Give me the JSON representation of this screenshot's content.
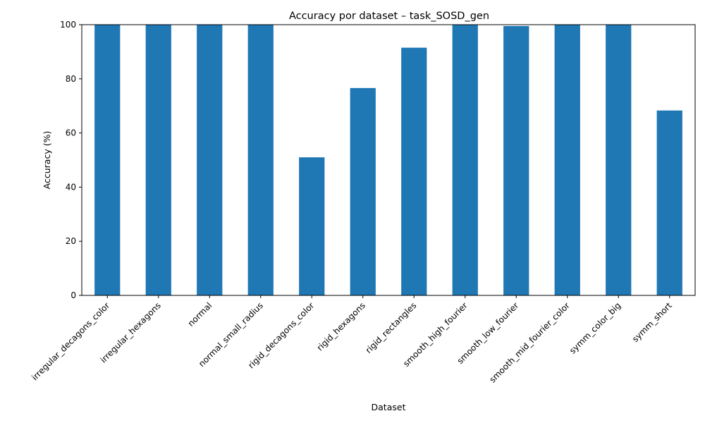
{
  "chart_data": {
    "type": "bar",
    "title": "Accuracy por dataset – task_SOSD_gen",
    "xlabel": "Dataset",
    "ylabel": "Accuracy (%)",
    "ylim": [
      0,
      100
    ],
    "yticks": [
      0,
      20,
      40,
      60,
      80,
      100
    ],
    "grid": false,
    "legend": "none",
    "bar_color": "#1f77b4",
    "categories": [
      "irregular_decagons_color",
      "irregular_hexagons",
      "normal",
      "normal_small_radius",
      "rigid_decagons_color",
      "rigid_hexagons",
      "rigid_rectangles",
      "smooth_high_fourier",
      "smooth_low_fourier",
      "smooth_mid_fourier_color",
      "symm_color_big",
      "symm_short"
    ],
    "values": [
      100,
      100,
      100,
      100,
      51,
      76.6,
      91.5,
      100,
      99.5,
      100,
      100,
      68.3
    ]
  }
}
